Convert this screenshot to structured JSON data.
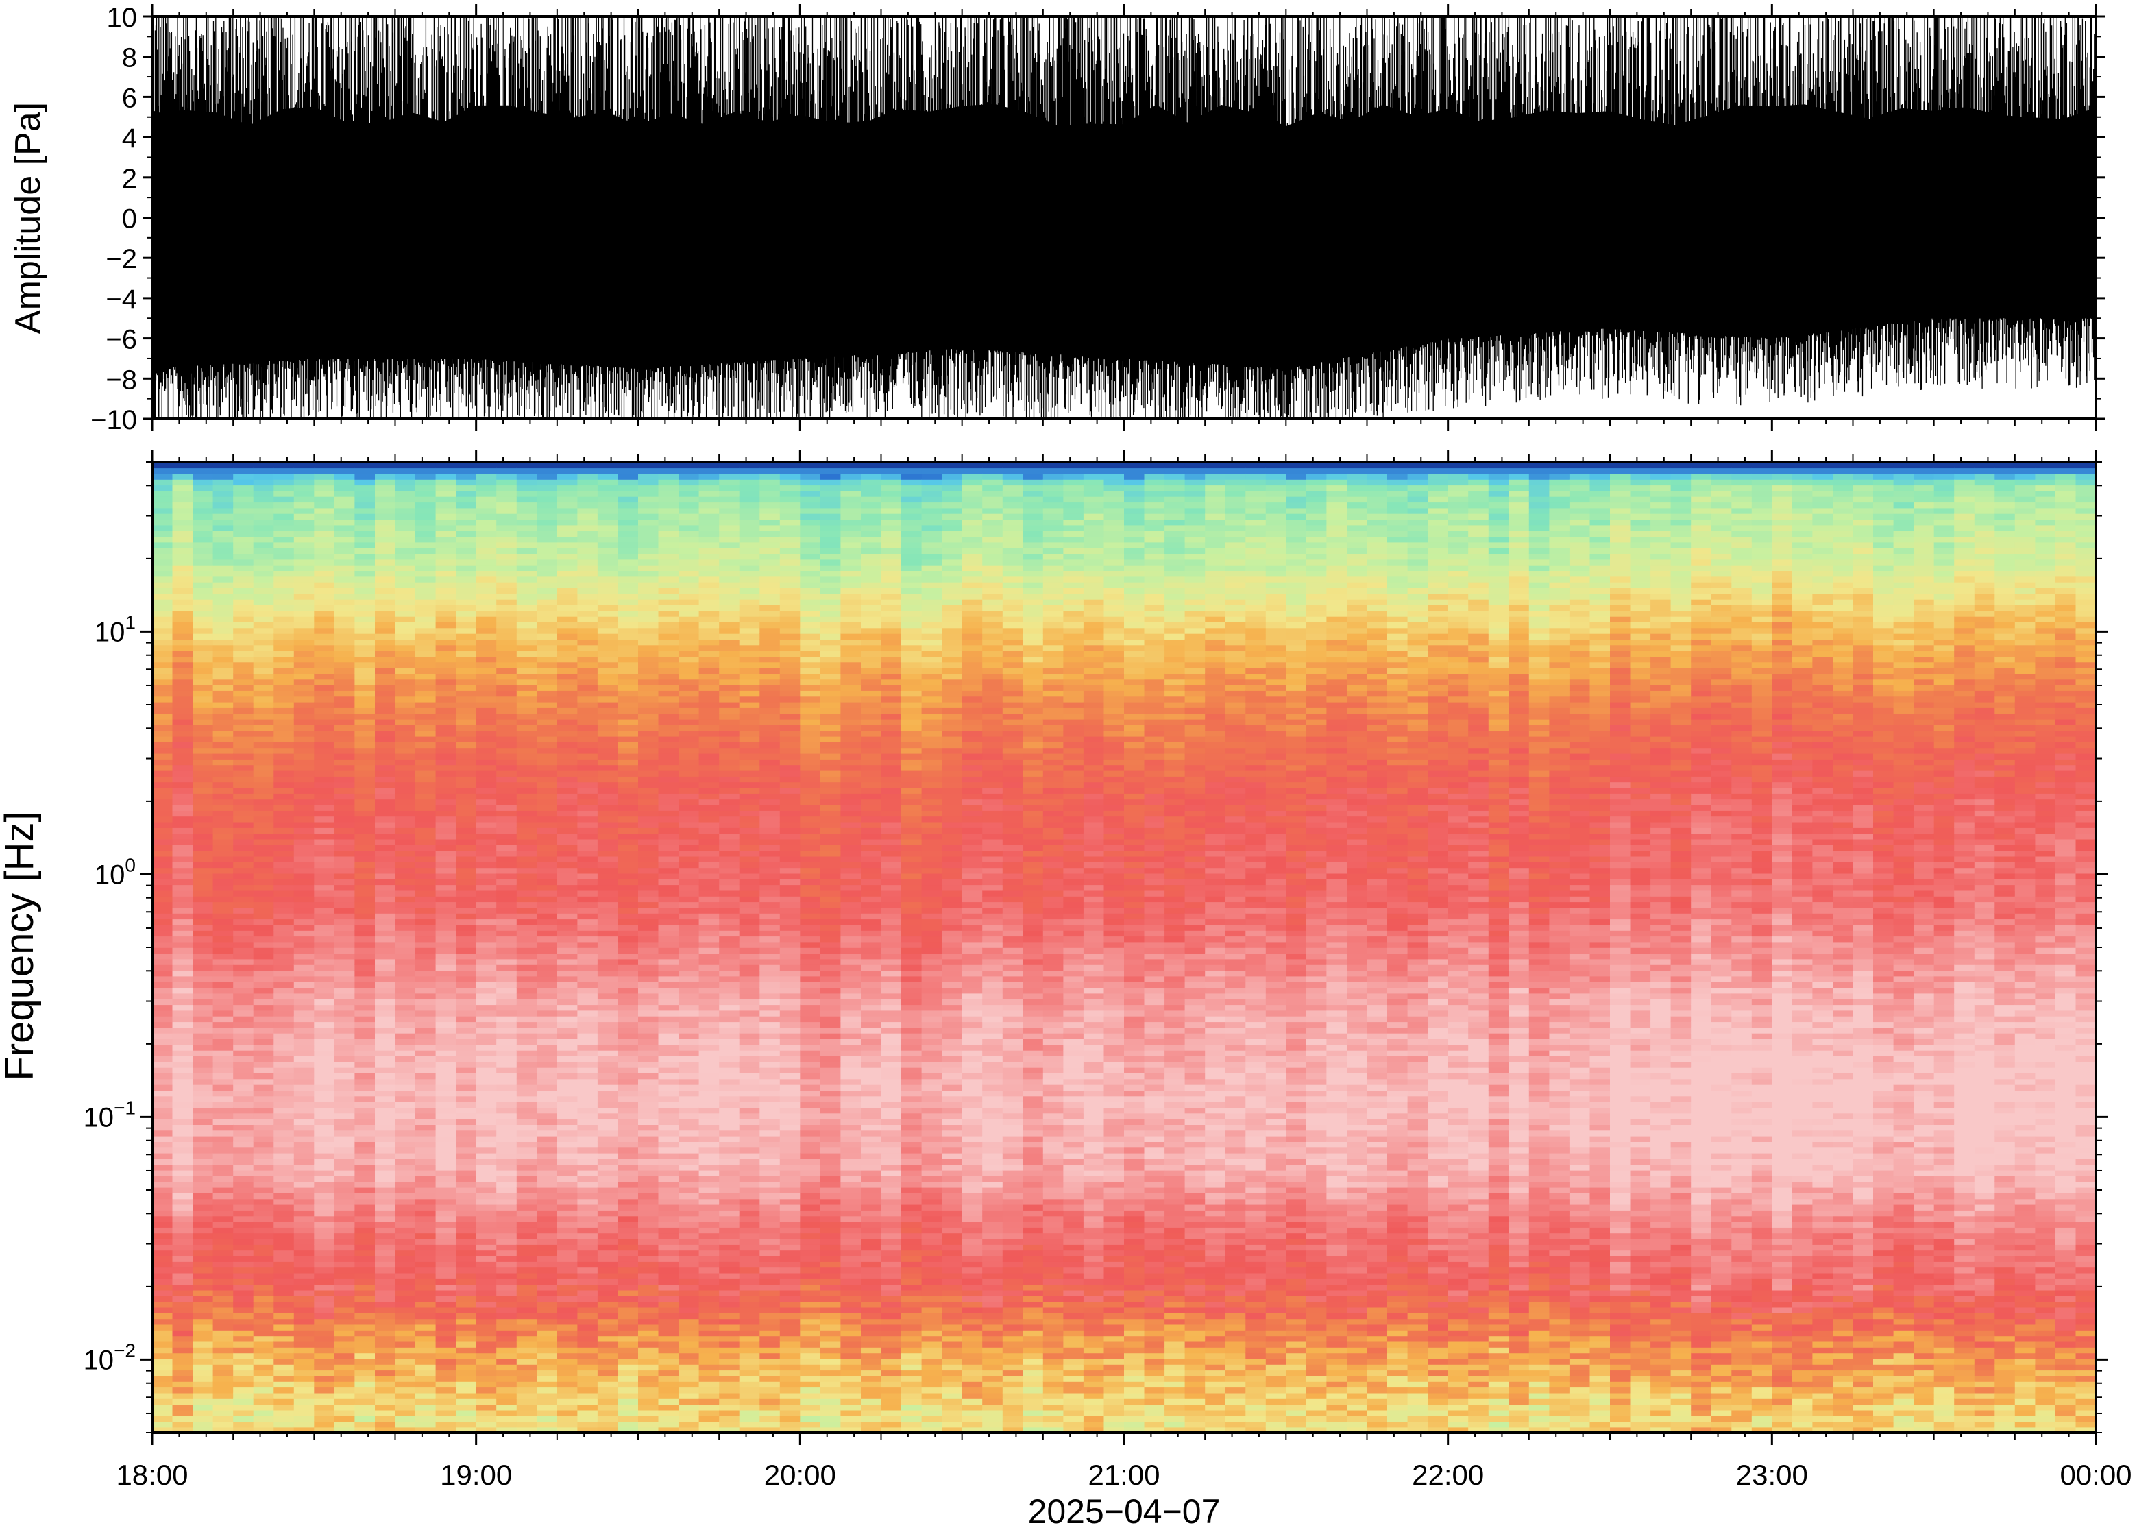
{
  "chart_data": [
    {
      "type": "line",
      "panel": "waveform",
      "ylabel": "Amplitude [Pa]",
      "ylim": [
        -10,
        10
      ],
      "yticks": [
        -10,
        -8,
        -6,
        -4,
        -2,
        0,
        2,
        4,
        6,
        8,
        10
      ],
      "ytick_labels": [
        "−10",
        "−8",
        "−6",
        "−4",
        "−2",
        "0",
        "2",
        "4",
        "6",
        "8",
        "10"
      ],
      "x_range": [
        "18:00",
        "00:00"
      ],
      "envelope": {
        "x_hours": [
          18.0,
          18.5,
          19.0,
          19.5,
          20.0,
          20.5,
          21.0,
          21.5,
          22.0,
          22.5,
          23.0,
          23.5,
          24.0
        ],
        "upper": [
          10,
          10,
          10,
          10,
          10,
          10,
          10,
          10,
          10,
          10,
          10,
          10,
          10
        ],
        "lower_typical": [
          -7.5,
          -7.0,
          -7.0,
          -7.5,
          -7.0,
          -6.5,
          -7.0,
          -7.5,
          -6.0,
          -5.5,
          -6.0,
          -5.0,
          -5.0
        ]
      },
      "color": "#000000"
    },
    {
      "type": "heatmap",
      "panel": "spectrogram",
      "ylabel": "Frequency [Hz]",
      "yscale": "log",
      "ylim": [
        0.005,
        50
      ],
      "ytick_labels": [
        {
          "base": "10",
          "exp": "−2",
          "value": 0.01
        },
        {
          "base": "10",
          "exp": "−1",
          "value": 0.1
        },
        {
          "base": "10",
          "exp": "0",
          "value": 1
        },
        {
          "base": "10",
          "exp": "1",
          "value": 10
        }
      ],
      "xlabel": "2025−04−07",
      "xtick_labels": [
        "18:00",
        "19:00",
        "20:00",
        "21:00",
        "22:00",
        "23:00",
        "00:00"
      ],
      "x_hours": [
        18,
        24
      ],
      "colormap": [
        "#0a1a78",
        "#2a6fd0",
        "#56c8e8",
        "#86e6b8",
        "#c8f0a0",
        "#f2e68a",
        "#f6b24e",
        "#f07850",
        "#f05a5a",
        "#f48c8c",
        "#f9c8c8"
      ],
      "band_profile": [
        {
          "freq": 0.006,
          "level": 5.2
        },
        {
          "freq": 0.012,
          "level": 6.6
        },
        {
          "freq": 0.02,
          "level": 8.0
        },
        {
          "freq": 0.035,
          "level": 8.6
        },
        {
          "freq": 0.06,
          "level": 9.6
        },
        {
          "freq": 0.12,
          "level": 9.9
        },
        {
          "freq": 0.3,
          "level": 9.4
        },
        {
          "freq": 0.8,
          "level": 8.2
        },
        {
          "freq": 2.0,
          "level": 7.9
        },
        {
          "freq": 5.0,
          "level": 6.8
        },
        {
          "freq": 10.0,
          "level": 5.6
        },
        {
          "freq": 20.0,
          "level": 4.0
        },
        {
          "freq": 40.0,
          "level": 3.2
        },
        {
          "freq": 47.0,
          "level": 1.0
        },
        {
          "freq": 50.0,
          "level": 0.0
        }
      ]
    }
  ]
}
